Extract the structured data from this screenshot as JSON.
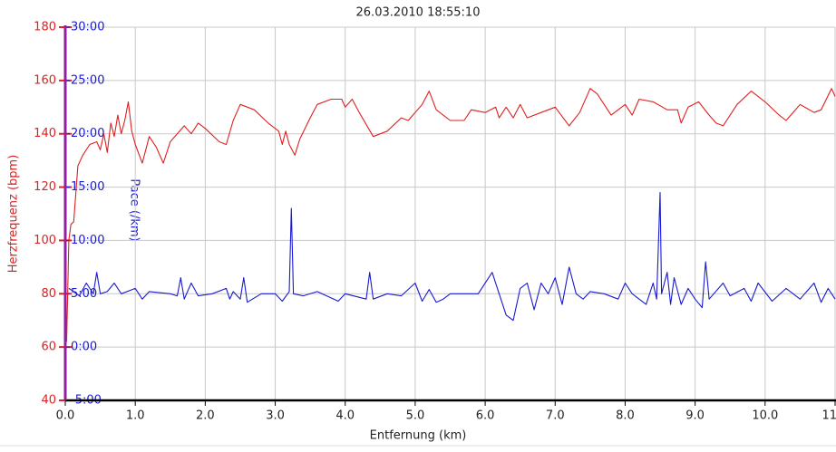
{
  "chart_data": {
    "type": "line",
    "title": "26.03.2010 18:55:10",
    "xlabel": "Entfernung (km)",
    "ylabel": "Herzfrequenz (bpm)",
    "y2label": "Pace (/km)",
    "xlim": [
      0,
      11.0
    ],
    "ylim": [
      40,
      180
    ],
    "y2lim": [
      -5,
      30
    ],
    "xticks": [
      {
        "value": 0,
        "label": "0.0"
      },
      {
        "value": 1,
        "label": "1.0"
      },
      {
        "value": 2,
        "label": "2.0"
      },
      {
        "value": 3,
        "label": "3.0"
      },
      {
        "value": 4,
        "label": "4.0"
      },
      {
        "value": 5,
        "label": "5.0"
      },
      {
        "value": 6,
        "label": "6.0"
      },
      {
        "value": 7,
        "label": "7.0"
      },
      {
        "value": 8,
        "label": "8.0"
      },
      {
        "value": 9,
        "label": "9.0"
      },
      {
        "value": 10,
        "label": "10.0"
      },
      {
        "value": 11,
        "label": "11.0"
      }
    ],
    "yticks": [
      40,
      60,
      80,
      100,
      120,
      140,
      160,
      180
    ],
    "y2ticks": [
      {
        "value": -5,
        "label": "-5:00"
      },
      {
        "value": 0,
        "label": "0:00"
      },
      {
        "value": 5,
        "label": "5:00"
      },
      {
        "value": 10,
        "label": "10:00"
      },
      {
        "value": 15,
        "label": "15:00"
      },
      {
        "value": 20,
        "label": "20:00"
      },
      {
        "value": 25,
        "label": "25:00"
      },
      {
        "value": 30,
        "label": "30:00"
      }
    ],
    "ycolor": "#e02020",
    "y2color": "#1a1ad0",
    "grid": true,
    "series": [
      {
        "color": "#e02020",
        "axis": "y",
        "x": [
          0.02,
          0.05,
          0.08,
          0.12,
          0.18,
          0.25,
          0.35,
          0.45,
          0.5,
          0.55,
          0.6,
          0.65,
          0.7,
          0.75,
          0.8,
          0.85,
          0.9,
          0.95,
          1.0,
          1.1,
          1.2,
          1.3,
          1.4,
          1.5,
          1.7,
          1.8,
          1.9,
          2.0,
          2.2,
          2.3,
          2.4,
          2.5,
          2.7,
          2.9,
          3.05,
          3.1,
          3.15,
          3.2,
          3.28,
          3.35,
          3.5,
          3.6,
          3.8,
          3.95,
          4.0,
          4.1,
          4.2,
          4.4,
          4.6,
          4.8,
          4.9,
          5.1,
          5.2,
          5.3,
          5.5,
          5.7,
          5.8,
          6.0,
          6.15,
          6.2,
          6.3,
          6.4,
          6.5,
          6.6,
          6.8,
          7.0,
          7.2,
          7.35,
          7.5,
          7.6,
          7.8,
          8.0,
          8.1,
          8.2,
          8.4,
          8.6,
          8.75,
          8.8,
          8.9,
          9.05,
          9.2,
          9.3,
          9.4,
          9.5,
          9.6,
          9.8,
          10.0,
          10.2,
          10.3,
          10.5,
          10.7,
          10.8,
          10.95,
          11.0
        ],
        "values": [
          62,
          100,
          106,
          107,
          128,
          132,
          136,
          137,
          134,
          140,
          133,
          144,
          139,
          147,
          140,
          145,
          152,
          141,
          136,
          129,
          139,
          135,
          129,
          137,
          143,
          140,
          144,
          142,
          137,
          136,
          145,
          151,
          149,
          144,
          141,
          136,
          141,
          136,
          132,
          138,
          146,
          151,
          153,
          153,
          150,
          153,
          148,
          139,
          141,
          146,
          145,
          151,
          156,
          149,
          145,
          145,
          149,
          148,
          150,
          146,
          150,
          146,
          151,
          146,
          148,
          150,
          143,
          148,
          157,
          155,
          147,
          151,
          147,
          153,
          152,
          149,
          149,
          144,
          150,
          152,
          147,
          144,
          143,
          147,
          151,
          156,
          152,
          147,
          145,
          151,
          148,
          149,
          157,
          154
        ]
      },
      {
        "color": "#1a1ad0",
        "axis": "y2",
        "x": [
          0.05,
          0.1,
          0.2,
          0.3,
          0.4,
          0.45,
          0.5,
          0.6,
          0.7,
          0.8,
          1.0,
          1.1,
          1.2,
          1.5,
          1.6,
          1.65,
          1.7,
          1.8,
          1.9,
          2.1,
          2.3,
          2.35,
          2.4,
          2.5,
          2.55,
          2.6,
          2.8,
          3.0,
          3.1,
          3.2,
          3.23,
          3.26,
          3.4,
          3.6,
          3.9,
          4.0,
          4.3,
          4.35,
          4.4,
          4.6,
          4.8,
          5.0,
          5.1,
          5.2,
          5.3,
          5.4,
          5.5,
          5.9,
          6.1,
          6.2,
          6.3,
          6.4,
          6.5,
          6.6,
          6.7,
          6.8,
          6.9,
          7.0,
          7.1,
          7.2,
          7.3,
          7.4,
          7.5,
          7.7,
          7.9,
          8.0,
          8.1,
          8.3,
          8.4,
          8.45,
          8.5,
          8.52,
          8.6,
          8.65,
          8.7,
          8.8,
          8.9,
          9.0,
          9.1,
          9.15,
          9.2,
          9.4,
          9.5,
          9.7,
          9.8,
          9.9,
          10.1,
          10.3,
          10.5,
          10.7,
          10.8,
          10.9,
          11.0
        ],
        "values": [
          5.5,
          5.3,
          4.8,
          6,
          5,
          7,
          5,
          5.2,
          6,
          5,
          5.5,
          4.5,
          5.2,
          5,
          4.8,
          6.5,
          4.5,
          6,
          4.8,
          5,
          5.5,
          4.5,
          5.2,
          4.5,
          6.5,
          4.2,
          5,
          5,
          4.3,
          5.2,
          13,
          5,
          4.8,
          5.2,
          4.3,
          5,
          4.5,
          7,
          4.5,
          5,
          4.8,
          6,
          4.3,
          5.4,
          4.2,
          4.5,
          5,
          5,
          7,
          5,
          3,
          2.5,
          5.5,
          6,
          3.5,
          6,
          5,
          6.5,
          4,
          7.5,
          5,
          4.5,
          5.2,
          5,
          4.5,
          6,
          5,
          4,
          6,
          4.5,
          14.5,
          5,
          7,
          4,
          6.5,
          4,
          5.5,
          4.5,
          3.7,
          8,
          4.5,
          6,
          4.8,
          5.5,
          4.3,
          6,
          4.3,
          5.5,
          4.5,
          6,
          4.2,
          5.5,
          4.5
        ]
      }
    ]
  }
}
